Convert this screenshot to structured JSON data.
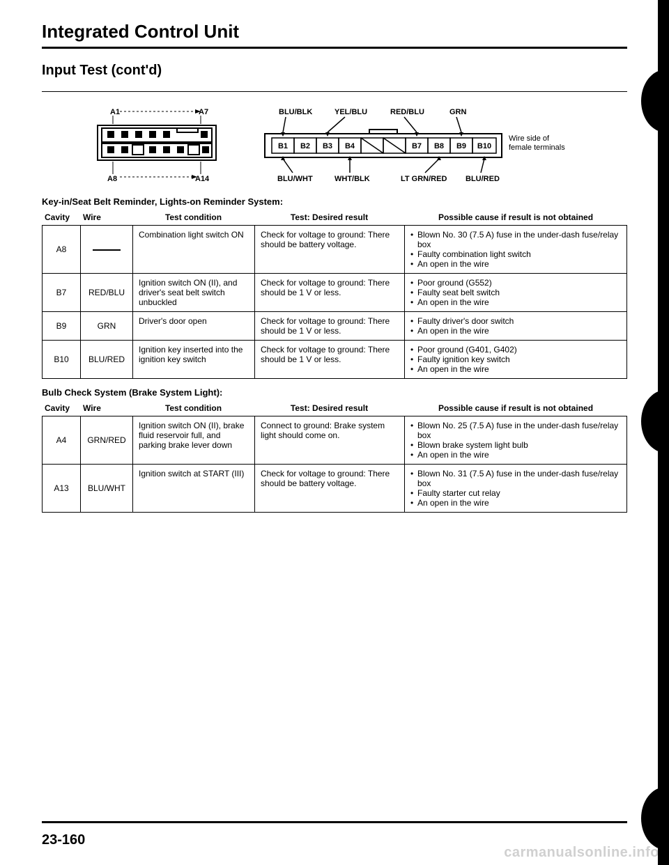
{
  "title": "Integrated Control Unit",
  "subtitle": "Input Test (cont'd)",
  "diagram": {
    "connectorA": {
      "topLeft": "A1",
      "topRight": "A7",
      "bottomLeft": "A8",
      "bottomRight": "A14"
    },
    "connectorB": {
      "topLabels": [
        "BLU/BLK",
        "YEL/BLU",
        "RED/BLU",
        "GRN"
      ],
      "bottomLabels": [
        "BLU/WHT",
        "WHT/BLK",
        "LT GRN/RED",
        "BLU/RED"
      ],
      "cells": [
        "B1",
        "B2",
        "B3",
        "B4",
        "",
        "",
        "B7",
        "B8",
        "B9",
        "B10"
      ],
      "sideNote": "Wire side of female terminals"
    }
  },
  "section1": {
    "label": "Key-in/Seat Belt Reminder, Lights-on Reminder System:",
    "headers": {
      "cavity": "Cavity",
      "wire": "Wire",
      "cond": "Test condition",
      "result": "Test: Desired result",
      "cause": "Possible cause if result is not obtained"
    },
    "rows": [
      {
        "cavity": "A8",
        "wire": "—",
        "condition": "Combination light switch ON",
        "result": "Check for voltage to ground: There should be battery voltage.",
        "causes": [
          "Blown No. 30 (7.5 A) fuse in the under-dash fuse/relay box",
          "Faulty combination light switch",
          "An open in the wire"
        ]
      },
      {
        "cavity": "B7",
        "wire": "RED/BLU",
        "condition": "Ignition switch ON (II), and driver's seat belt switch unbuckled",
        "result": "Check for voltage to ground: There should be 1 V or less.",
        "causes": [
          "Poor ground (G552)",
          "Faulty seat belt switch",
          "An open in the wire"
        ]
      },
      {
        "cavity": "B9",
        "wire": "GRN",
        "condition": "Driver's door open",
        "result": "Check for voltage to ground: There should be 1 V or less.",
        "causes": [
          "Faulty driver's door switch",
          "An open in the wire"
        ]
      },
      {
        "cavity": "B10",
        "wire": "BLU/RED",
        "condition": "Ignition key inserted into the ignition key switch",
        "result": "Check for voltage to ground: There should be 1 V or less.",
        "causes": [
          "Poor ground (G401, G402)",
          "Faulty ignition key switch",
          "An open in the wire"
        ]
      }
    ]
  },
  "section2": {
    "label": "Bulb Check System (Brake System Light):",
    "headers": {
      "cavity": "Cavity",
      "wire": "Wire",
      "cond": "Test condition",
      "result": "Test: Desired result",
      "cause": "Possible cause if result is not obtained"
    },
    "rows": [
      {
        "cavity": "A4",
        "wire": "GRN/RED",
        "condition": "Ignition switch ON (II), brake fluid reservoir full, and parking brake lever down",
        "result": "Connect to ground: Brake system light should come on.",
        "causes": [
          "Blown No. 25 (7.5 A) fuse in the under-dash fuse/relay box",
          "Blown brake system light bulb",
          "An open in the wire"
        ]
      },
      {
        "cavity": "A13",
        "wire": "BLU/WHT",
        "condition": "Ignition switch at START (III)",
        "result": "Check for voltage to ground: There should be battery voltage.",
        "causes": [
          "Blown No. 31 (7.5 A) fuse in the under-dash fuse/relay box",
          "Faulty starter cut relay",
          "An open in the wire"
        ]
      }
    ]
  },
  "pageNumber": "23-160",
  "watermark": "carmanualsonline.info"
}
